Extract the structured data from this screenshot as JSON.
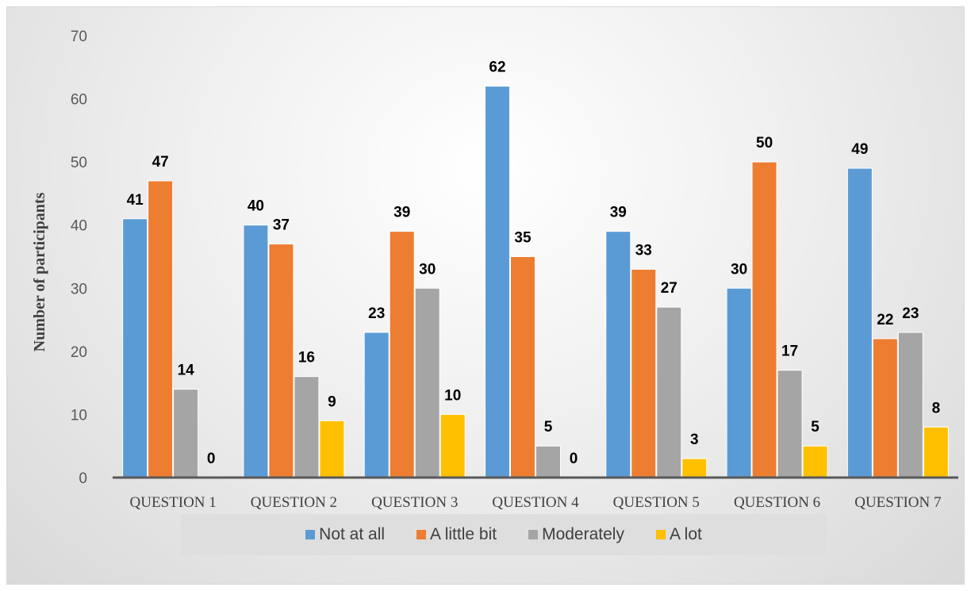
{
  "chart_data": {
    "type": "bar",
    "title": "",
    "xlabel": "",
    "ylabel": "Number of participants",
    "ylim": [
      0,
      70
    ],
    "yticks": [
      0,
      10,
      20,
      30,
      40,
      50,
      60,
      70
    ],
    "grid": false,
    "legend_position": "bottom",
    "categories": [
      "QUESTION 1",
      "QUESTION 2",
      "QUESTION 3",
      "QUESTION 4",
      "QUESTION 5",
      "QUESTION 6",
      "QUESTION 7"
    ],
    "series": [
      {
        "name": "Not at all",
        "color": "#5b9bd5",
        "values": [
          41,
          40,
          23,
          62,
          39,
          30,
          49
        ]
      },
      {
        "name": "A little bit",
        "color": "#ed7d31",
        "values": [
          47,
          37,
          39,
          35,
          33,
          50,
          22
        ]
      },
      {
        "name": "Moderately",
        "color": "#a5a5a5",
        "values": [
          14,
          16,
          30,
          5,
          27,
          17,
          23
        ]
      },
      {
        "name": "A lot",
        "color": "#ffc000",
        "values": [
          0,
          9,
          10,
          0,
          3,
          5,
          8
        ]
      }
    ]
  }
}
